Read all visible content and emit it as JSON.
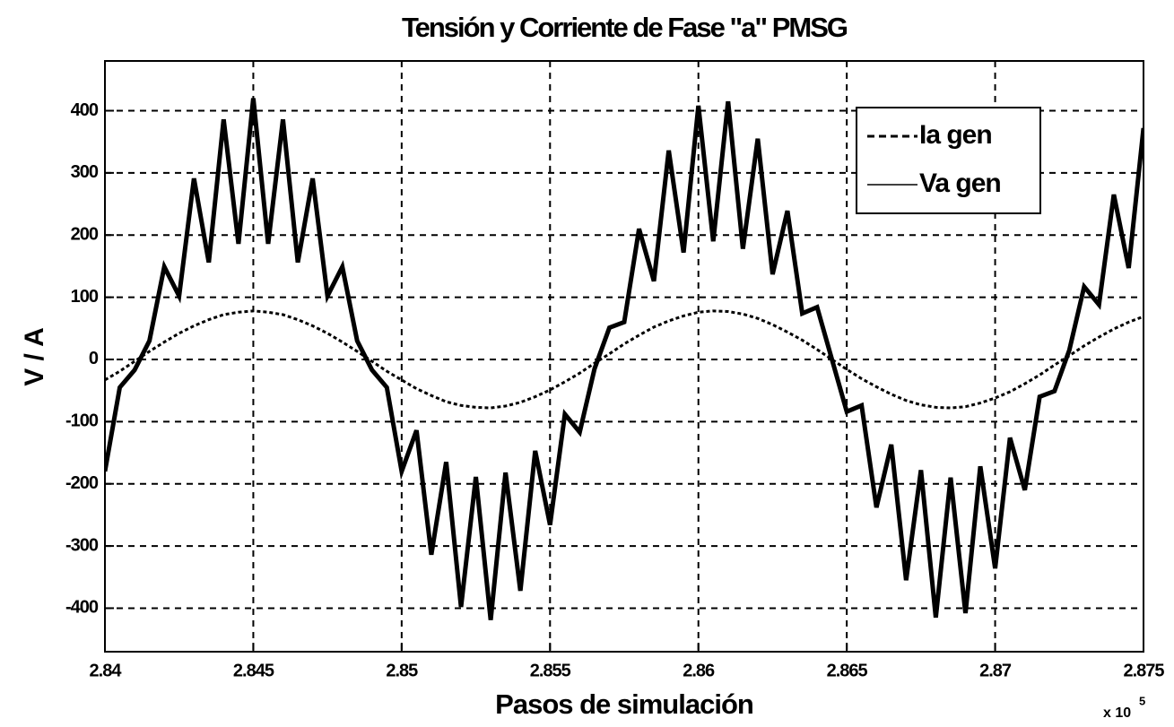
{
  "chart_data": {
    "type": "line",
    "title": "Tensión y Corriente de Fase \"a\" PMSG",
    "xlabel": "Pasos de simulación",
    "ylabel": "V / A",
    "x_multiplier": "x 10",
    "x_exponent": "5",
    "x": [
      2.84,
      2.8405,
      2.841,
      2.8415,
      2.842,
      2.8425,
      2.843,
      2.8435,
      2.844,
      2.8445,
      2.845,
      2.8455,
      2.846,
      2.8465,
      2.847,
      2.8475,
      2.848,
      2.8485,
      2.849,
      2.8495,
      2.85,
      2.8505,
      2.851,
      2.8515,
      2.852,
      2.8525,
      2.853,
      2.8535,
      2.854,
      2.8545,
      2.855,
      2.8555,
      2.856,
      2.8565,
      2.857,
      2.8575,
      2.858,
      2.8585,
      2.859,
      2.8595,
      2.86,
      2.8605,
      2.861,
      2.8615,
      2.862,
      2.8625,
      2.863,
      2.8635,
      2.864,
      2.8645,
      2.865,
      2.8655,
      2.866,
      2.8665,
      2.867,
      2.8675,
      2.868,
      2.8685,
      2.869,
      2.8695,
      2.87,
      2.8705,
      2.871,
      2.8715,
      2.872,
      2.8725,
      2.873,
      2.8735,
      2.874,
      2.8745,
      2.875
    ],
    "series": [
      {
        "name": "Ia gen",
        "color": "#000000",
        "dash": true,
        "values": [
          -33,
          -19,
          -3,
          13,
          28,
          42,
          54,
          64,
          72,
          76,
          78,
          76,
          72,
          64,
          54,
          42,
          28,
          13,
          -3,
          -19,
          -33,
          -47,
          -58,
          -68,
          -74,
          -77,
          -78,
          -75,
          -69,
          -60,
          -49,
          -36,
          -22,
          -6,
          9,
          25,
          39,
          52,
          62,
          70,
          76,
          78,
          77,
          73,
          66,
          56,
          44,
          31,
          16,
          0,
          -16,
          -31,
          -44,
          -56,
          -66,
          -73,
          -77,
          -78,
          -76,
          -70,
          -62,
          -52,
          -39,
          -25,
          -9,
          6,
          22,
          36,
          49,
          60,
          69
        ]
      },
      {
        "name": "Va gen",
        "color": "#000000",
        "dash": false,
        "values": [
          -180,
          -45,
          -17,
          30,
          149,
          102,
          291,
          156,
          386,
          186,
          420,
          186,
          386,
          156,
          291,
          102,
          149,
          30,
          -17,
          -45,
          -180,
          -114,
          -314,
          -165,
          -398,
          -189,
          -419,
          -182,
          -372,
          -147,
          -266,
          -88,
          -117,
          -15,
          51,
          60,
          210,
          126,
          336,
          172,
          408,
          190,
          415,
          178,
          355,
          137,
          239,
          74,
          84,
          0,
          -84,
          -74,
          -238,
          -137,
          -355,
          -178,
          -415,
          -190,
          -408,
          -172,
          -336,
          -126,
          -210,
          -60,
          -51,
          15,
          117,
          88,
          265,
          147,
          372
        ]
      }
    ],
    "xlim": [
      2.84,
      2.875
    ],
    "xticks": [
      2.84,
      2.845,
      2.85,
      2.855,
      2.86,
      2.865,
      2.87,
      2.875
    ],
    "ylim": [
      -470,
      480
    ],
    "yticks": [
      -400,
      -300,
      -200,
      -100,
      0,
      100,
      200,
      300,
      400
    ],
    "grid": true,
    "legend": "upper right"
  }
}
